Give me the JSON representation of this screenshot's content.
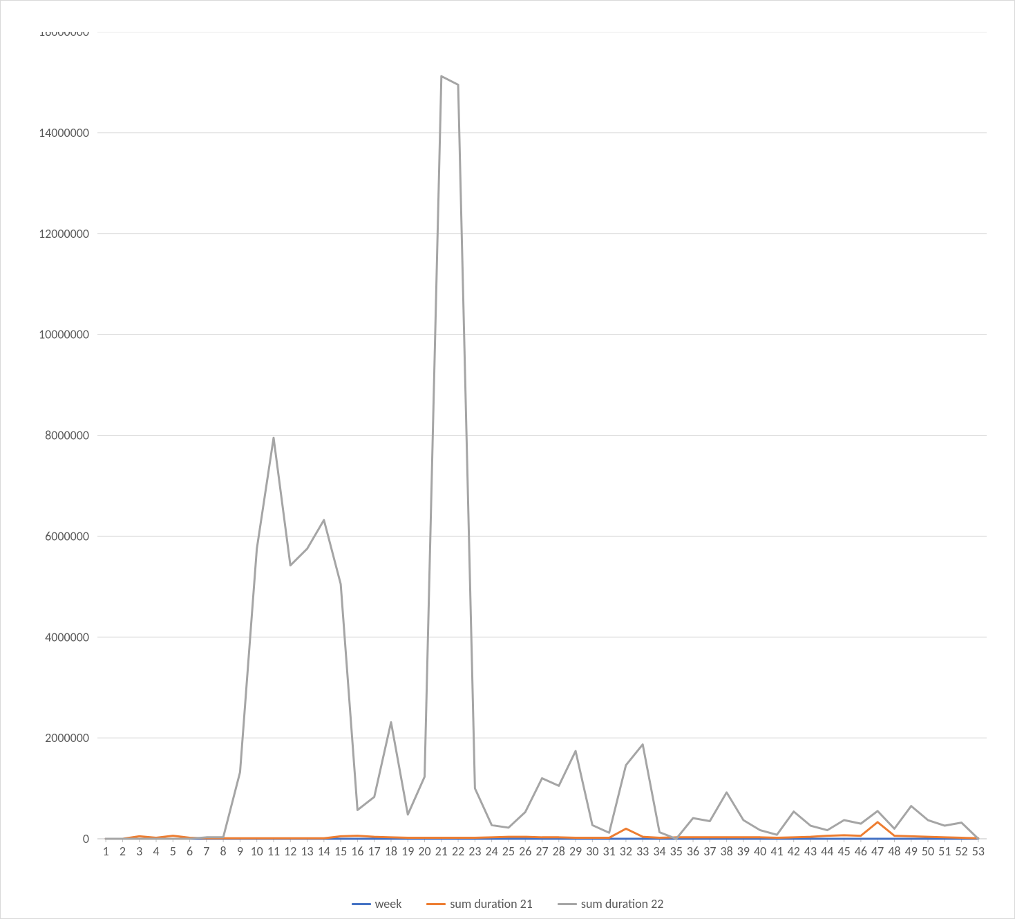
{
  "chart": {
    "type": "line",
    "background_color": "#ffffff",
    "border_color": "#d9d9d9",
    "grid_color": "#d9d9d9",
    "grid_width": 1,
    "axis_color": "#bfbfbf",
    "axis_width": 1,
    "line_width": 3,
    "tick_fontsize": 18,
    "tick_color": "#595959",
    "xlim": [
      1,
      53
    ],
    "ylim": [
      0,
      16000000
    ],
    "ytick_step": 2000000,
    "yticks": [
      0,
      2000000,
      4000000,
      6000000,
      8000000,
      10000000,
      12000000,
      14000000,
      16000000
    ],
    "xcategories": [
      "1",
      "2",
      "3",
      "4",
      "5",
      "6",
      "7",
      "8",
      "9",
      "10",
      "11",
      "12",
      "13",
      "14",
      "15",
      "16",
      "17",
      "18",
      "19",
      "20",
      "21",
      "22",
      "23",
      "24",
      "25",
      "26",
      "27",
      "28",
      "29",
      "30",
      "31",
      "32",
      "33",
      "34",
      "35",
      "36",
      "37",
      "38",
      "39",
      "40",
      "41",
      "42",
      "43",
      "44",
      "45",
      "46",
      "47",
      "48",
      "49",
      "50",
      "51",
      "52",
      "53"
    ],
    "legend": {
      "items": [
        {
          "label": "week",
          "color": "#4472c4"
        },
        {
          "label": "sum duration 21",
          "color": "#ed7d31"
        },
        {
          "label": "sum duration 22",
          "color": "#a5a5a5"
        }
      ]
    },
    "series": [
      {
        "name": "week",
        "color": "#4472c4",
        "values": [
          1,
          2,
          3,
          4,
          5,
          6,
          7,
          8,
          9,
          10,
          11,
          12,
          13,
          14,
          15,
          16,
          17,
          18,
          19,
          20,
          21,
          22,
          23,
          24,
          25,
          26,
          27,
          28,
          29,
          30,
          31,
          32,
          33,
          34,
          35,
          36,
          37,
          38,
          39,
          40,
          41,
          42,
          43,
          44,
          45,
          46,
          47,
          48,
          49,
          50,
          51,
          52,
          53
        ]
      },
      {
        "name": "sum duration 21",
        "color": "#ed7d31",
        "values": [
          0,
          0,
          50000,
          20000,
          60000,
          20000,
          10000,
          10000,
          10000,
          10000,
          10000,
          10000,
          10000,
          10000,
          50000,
          60000,
          40000,
          30000,
          20000,
          20000,
          20000,
          20000,
          20000,
          30000,
          40000,
          40000,
          30000,
          30000,
          20000,
          20000,
          20000,
          200000,
          40000,
          20000,
          30000,
          30000,
          30000,
          30000,
          30000,
          30000,
          20000,
          30000,
          40000,
          60000,
          70000,
          60000,
          330000,
          60000,
          50000,
          40000,
          30000,
          20000,
          10000
        ]
      },
      {
        "name": "sum duration 22",
        "color": "#a5a5a5",
        "values": [
          0,
          0,
          0,
          0,
          0,
          0,
          30000,
          30000,
          1320000,
          5750000,
          7950000,
          5420000,
          5750000,
          6320000,
          5050000,
          570000,
          830000,
          2310000,
          480000,
          1230000,
          15120000,
          14950000,
          1000000,
          270000,
          220000,
          530000,
          1200000,
          1050000,
          1740000,
          270000,
          120000,
          1460000,
          1870000,
          130000,
          0,
          410000,
          350000,
          920000,
          370000,
          170000,
          80000,
          540000,
          260000,
          170000,
          370000,
          300000,
          550000,
          200000,
          650000,
          370000,
          260000,
          320000,
          0
        ]
      }
    ]
  }
}
